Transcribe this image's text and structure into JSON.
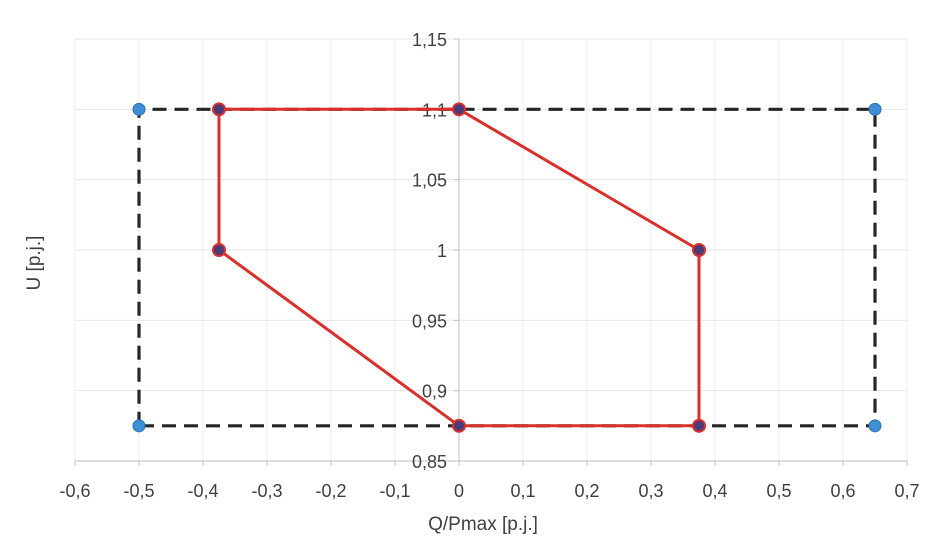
{
  "chart_data": {
    "type": "scatter",
    "title": "",
    "xlabel": "Q/Pmax [p.j.]",
    "ylabel": "U [p.j.]",
    "xlim": [
      -0.6,
      0.7
    ],
    "ylim": [
      0.85,
      1.15
    ],
    "x_ticks": [
      -0.6,
      -0.5,
      -0.4,
      -0.3,
      -0.2,
      -0.1,
      0,
      0.1,
      0.2,
      0.3,
      0.4,
      0.5,
      0.6,
      0.7
    ],
    "y_ticks": [
      0.85,
      0.9,
      0.95,
      1.0,
      1.05,
      1.1,
      1.15
    ],
    "x_tick_labels": [
      "-0,6",
      "-0,5",
      "-0,4",
      "-0,3",
      "-0,2",
      "-0,1",
      "0",
      "0,1",
      "0,2",
      "0,3",
      "0,4",
      "0,5",
      "0,6",
      "0,7"
    ],
    "y_tick_labels": [
      "0,85",
      "0,9",
      "0,95",
      "1",
      "1,05",
      "1,1",
      "1,15"
    ],
    "grid": true,
    "legend": "none",
    "series": [
      {
        "style": "dashed",
        "line_color": "#262626",
        "marker_color": "#3d8fd6",
        "points": [
          {
            "x": -0.5,
            "y": 0.875
          },
          {
            "x": -0.5,
            "y": 1.1
          },
          {
            "x": 0.65,
            "y": 1.1
          },
          {
            "x": 0.65,
            "y": 0.875
          },
          {
            "x": -0.5,
            "y": 0.875
          }
        ]
      },
      {
        "style": "solid",
        "line_color": "#d9302b",
        "marker_color": "#4a3a78",
        "points": [
          {
            "x": -0.375,
            "y": 1.1
          },
          {
            "x": 0,
            "y": 1.1
          },
          {
            "x": 0.375,
            "y": 1.0
          },
          {
            "x": 0.375,
            "y": 0.875
          },
          {
            "x": 0,
            "y": 0.875
          },
          {
            "x": -0.375,
            "y": 1.0
          },
          {
            "x": -0.375,
            "y": 1.1
          }
        ]
      }
    ]
  }
}
